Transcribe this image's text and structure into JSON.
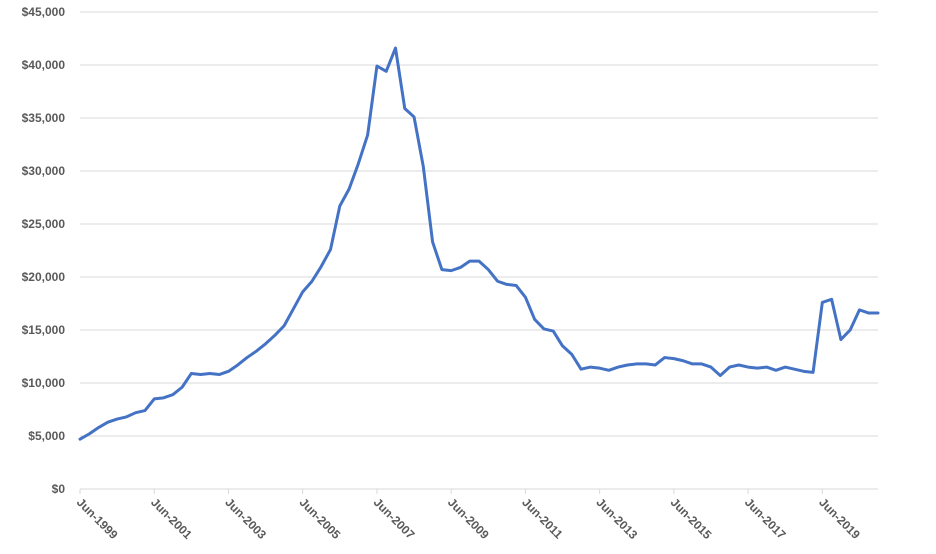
{
  "chart_data": {
    "type": "line",
    "title": "",
    "xlabel": "",
    "ylabel": "",
    "ylim": [
      0,
      45000
    ],
    "y_ticks": [
      "$0",
      "$5,000",
      "$10,000",
      "$15,000",
      "$20,000",
      "$25,000",
      "$30,000",
      "$35,000",
      "$40,000",
      "$45,000"
    ],
    "x_ticks": [
      "Jun-1999",
      "Jun-2001",
      "Jun-2003",
      "Jun-2005",
      "Jun-2007",
      "Jun-2009",
      "Jun-2011",
      "Jun-2013",
      "Jun-2015",
      "Jun-2017",
      "Jun-2019"
    ],
    "grid": true,
    "legend": "none",
    "series": [
      {
        "color": "#4472C4",
        "x": [
          "Jun-1999",
          "Sep-1999",
          "Dec-1999",
          "Mar-2000",
          "Jun-2000",
          "Sep-2000",
          "Dec-2000",
          "Mar-2001",
          "Jun-2001",
          "Sep-2001",
          "Dec-2001",
          "Mar-2002",
          "Jun-2002",
          "Sep-2002",
          "Dec-2002",
          "Mar-2003",
          "Jun-2003",
          "Sep-2003",
          "Dec-2003",
          "Mar-2004",
          "Jun-2004",
          "Sep-2004",
          "Dec-2004",
          "Mar-2005",
          "Jun-2005",
          "Sep-2005",
          "Dec-2005",
          "Mar-2006",
          "Jun-2006",
          "Sep-2006",
          "Dec-2006",
          "Mar-2007",
          "Jun-2007",
          "Sep-2007",
          "Dec-2007",
          "Mar-2008",
          "Jun-2008",
          "Sep-2008",
          "Dec-2008",
          "Mar-2009",
          "Jun-2009",
          "Sep-2009",
          "Dec-2009",
          "Mar-2010",
          "Jun-2010",
          "Sep-2010",
          "Dec-2010",
          "Mar-2011",
          "Jun-2011",
          "Sep-2011",
          "Dec-2011",
          "Mar-2012",
          "Jun-2012",
          "Sep-2012",
          "Dec-2012",
          "Mar-2013",
          "Jun-2013",
          "Sep-2013",
          "Dec-2013",
          "Mar-2014",
          "Jun-2014",
          "Sep-2014",
          "Dec-2014",
          "Mar-2015",
          "Jun-2015",
          "Sep-2015",
          "Dec-2015",
          "Mar-2016",
          "Jun-2016",
          "Sep-2016",
          "Dec-2016",
          "Mar-2017",
          "Jun-2017",
          "Sep-2017",
          "Dec-2017",
          "Mar-2018",
          "Jun-2018",
          "Sep-2018",
          "Dec-2018",
          "Mar-2019",
          "Jun-2019",
          "Sep-2019",
          "Dec-2019",
          "Mar-2020",
          "Jun-2020",
          "Sep-2020",
          "Dec-2020"
        ],
        "values": [
          4700,
          5200,
          5800,
          6300,
          6600,
          6800,
          7200,
          7400,
          8500,
          8600,
          8900,
          9600,
          10900,
          10800,
          10900,
          10800,
          11100,
          11700,
          12400,
          13000,
          13700,
          14500,
          15400,
          17000,
          18600,
          19600,
          21000,
          22600,
          26700,
          28300,
          30700,
          33400,
          39900,
          39400,
          41600,
          35900,
          35100,
          30400,
          23300,
          20700,
          20600,
          20900,
          21500,
          21500,
          20700,
          19600,
          19300,
          19200,
          18100,
          16000,
          15100,
          14900,
          13500,
          12700,
          11300,
          11500,
          11400,
          11200,
          11500,
          11700,
          11800,
          11800,
          11700,
          12400,
          12300,
          12100,
          11800,
          11800,
          11500,
          10700,
          11500,
          11700,
          11500,
          11400,
          11500,
          11200,
          11500,
          11300,
          11100,
          11000,
          17600,
          17900,
          14100,
          15000,
          16900,
          16600,
          16600
        ]
      }
    ]
  }
}
